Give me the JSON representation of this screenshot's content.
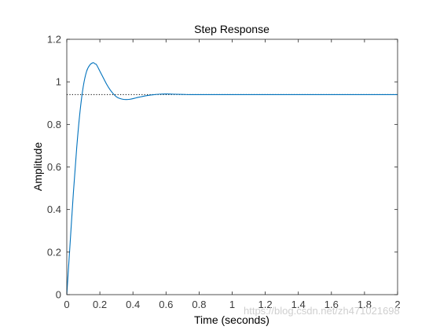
{
  "chart_data": {
    "type": "line",
    "title": "Step Response",
    "xlabel": "Time (seconds)",
    "ylabel": "Amplitude",
    "xlim": [
      0,
      2
    ],
    "ylim": [
      0,
      1.2
    ],
    "xticks": [
      0,
      0.2,
      0.4,
      0.6,
      0.8,
      1,
      1.2,
      1.4,
      1.6,
      1.8,
      2
    ],
    "xtick_labels": [
      "0",
      "0.2",
      "0.4",
      "0.6",
      "0.8",
      "1",
      "1.2",
      "1.4",
      "1.6",
      "1.8",
      "2"
    ],
    "yticks": [
      0,
      0.2,
      0.4,
      0.6,
      0.8,
      1,
      1.2
    ],
    "ytick_labels": [
      "0",
      "0.2",
      "0.4",
      "0.6",
      "0.8",
      "1",
      "1.2"
    ],
    "grid": false,
    "steady_state": 0.94,
    "series": [
      {
        "color": "#0072BD",
        "x": [
          0,
          0.02,
          0.04,
          0.06,
          0.08,
          0.1,
          0.12,
          0.14,
          0.16,
          0.17,
          0.18,
          0.2,
          0.22,
          0.24,
          0.26,
          0.28,
          0.3,
          0.32,
          0.34,
          0.36,
          0.38,
          0.4,
          0.42,
          0.45,
          0.48,
          0.52,
          0.56,
          0.6,
          0.65,
          0.7,
          0.75,
          0.8,
          0.9,
          1.0,
          1.2,
          1.4,
          1.6,
          1.8,
          2.0
        ],
        "y": [
          0,
          0.24,
          0.48,
          0.69,
          0.86,
          0.98,
          1.05,
          1.08,
          1.09,
          1.085,
          1.08,
          1.05,
          1.02,
          0.99,
          0.965,
          0.945,
          0.93,
          0.922,
          0.918,
          0.917,
          0.918,
          0.921,
          0.925,
          0.93,
          0.935,
          0.939,
          0.942,
          0.943,
          0.942,
          0.941,
          0.94,
          0.94,
          0.94,
          0.94,
          0.94,
          0.94,
          0.94,
          0.94,
          0.94
        ]
      }
    ]
  },
  "watermark": "https://blog.csdn.net/zh471021698"
}
